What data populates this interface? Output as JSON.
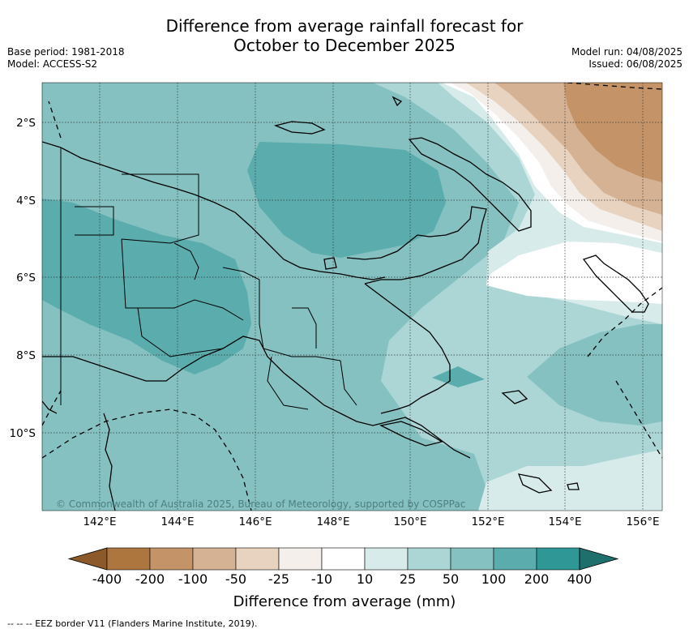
{
  "header": {
    "title_line1": "Difference from average rainfall forecast for",
    "title_line2": "October to December 2025",
    "base_period": "Base period: 1981-2018",
    "model": "Model: ACCESS-S2",
    "model_run": "Model run: 04/08/2025",
    "issued": "Issued: 06/08/2025"
  },
  "map": {
    "lat_labels": [
      "2°S",
      "4°S",
      "6°S",
      "8°S",
      "10°S"
    ],
    "lon_labels": [
      "142°E",
      "144°E",
      "146°E",
      "148°E",
      "150°E",
      "152°E",
      "154°E",
      "156°E"
    ],
    "credit": "© Commonwealth of Australia 2025, Bureau of Meteorology, supported by COSPPac"
  },
  "colorbar": {
    "title": "Difference from average (mm)",
    "tick_labels": [
      "-400",
      "-200",
      "-100",
      "-50",
      "-25",
      "-10",
      "10",
      "25",
      "50",
      "100",
      "200",
      "400"
    ],
    "colors": [
      "#8c5a2a",
      "#ad763f",
      "#c49468",
      "#d5b293",
      "#e8d3c1",
      "#f4efeb",
      "#ffffff",
      "#d6ebea",
      "#acd6d6",
      "#85c1c1",
      "#5aacad",
      "#2f9896",
      "#1f6f6c"
    ]
  },
  "footnote": "--  --  -- EEZ border V11 (Flanders Marine Institute, 2019)."
}
